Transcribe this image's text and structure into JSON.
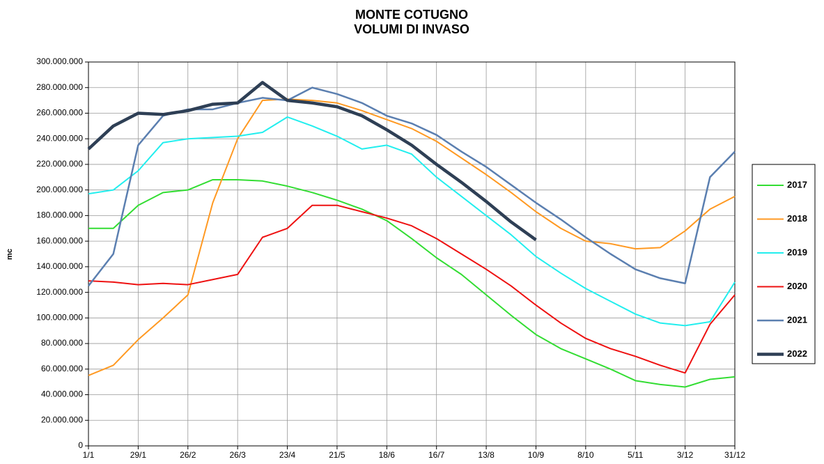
{
  "chart_data": {
    "type": "line",
    "title": "MONTE COTUGNO",
    "subtitle": "VOLUMI DI INVASO",
    "y_label": "mc",
    "x": [
      0,
      14,
      28,
      42,
      56,
      70,
      84,
      98,
      112,
      126,
      140,
      154,
      168,
      182,
      196,
      210,
      224,
      238,
      252,
      266,
      280,
      294,
      308,
      322,
      336,
      350,
      364
    ],
    "xlim": [
      0,
      364
    ],
    "xticks": [
      {
        "value": 0,
        "label": "1/1"
      },
      {
        "value": 28,
        "label": "29/1"
      },
      {
        "value": 56,
        "label": "26/2"
      },
      {
        "value": 84,
        "label": "26/3"
      },
      {
        "value": 112,
        "label": "23/4"
      },
      {
        "value": 140,
        "label": "21/5"
      },
      {
        "value": 168,
        "label": "18/6"
      },
      {
        "value": 196,
        "label": "16/7"
      },
      {
        "value": 224,
        "label": "13/8"
      },
      {
        "value": 252,
        "label": "10/9"
      },
      {
        "value": 280,
        "label": "8/10"
      },
      {
        "value": 308,
        "label": "5/11"
      },
      {
        "value": 336,
        "label": "3/12"
      },
      {
        "value": 364,
        "label": "31/12"
      }
    ],
    "ylim": [
      0,
      300000000
    ],
    "yticks": [
      0,
      {
        "value": 20000000,
        "label": "20.000.000"
      },
      {
        "value": 40000000,
        "label": "40.000.000"
      },
      {
        "value": 60000000,
        "label": "60.000.000"
      },
      {
        "value": 80000000,
        "label": "80.000.000"
      },
      {
        "value": 100000000,
        "label": "100.000.000"
      },
      {
        "value": 120000000,
        "label": "120.000.000"
      },
      {
        "value": 140000000,
        "label": "140.000.000"
      },
      {
        "value": 160000000,
        "label": "160.000.000"
      },
      {
        "value": 180000000,
        "label": "180.000.000"
      },
      {
        "value": 200000000,
        "label": "200.000.000"
      },
      {
        "value": 220000000,
        "label": "220.000.000"
      },
      {
        "value": 240000000,
        "label": "240.000.000"
      },
      {
        "value": 260000000,
        "label": "260.000.000"
      },
      {
        "value": 280000000,
        "label": "280.000.000"
      },
      {
        "value": 300000000,
        "label": "300.000.000"
      }
    ],
    "grid": true,
    "legend": "right",
    "series": [
      {
        "name": "2017",
        "color": "#33dd33",
        "line_width": 2,
        "values": [
          170000000,
          170000000,
          188000000,
          198000000,
          200000000,
          208000000,
          208000000,
          207000000,
          203000000,
          198000000,
          192000000,
          185000000,
          176000000,
          162000000,
          147000000,
          134000000,
          118000000,
          102000000,
          87000000,
          76000000,
          68000000,
          60000000,
          51000000,
          48000000,
          46000000,
          52000000,
          54000000
        ]
      },
      {
        "name": "2018",
        "color": "#ff9922",
        "line_width": 2,
        "values": [
          55000000,
          63000000,
          83000000,
          100000000,
          118000000,
          190000000,
          240000000,
          270000000,
          271000000,
          270000000,
          268000000,
          262000000,
          255000000,
          248000000,
          238000000,
          225000000,
          212000000,
          198000000,
          183000000,
          170000000,
          160000000,
          158000000,
          154000000,
          155000000,
          168000000,
          185000000,
          195000000
        ]
      },
      {
        "name": "2019",
        "color": "#22eeee",
        "line_width": 2,
        "values": [
          197000000,
          200000000,
          215000000,
          237000000,
          240000000,
          241000000,
          242000000,
          245000000,
          257000000,
          250000000,
          242000000,
          232000000,
          235000000,
          228000000,
          210000000,
          195000000,
          180000000,
          165000000,
          148000000,
          135000000,
          123000000,
          113000000,
          103000000,
          96000000,
          94000000,
          97000000,
          128000000
        ]
      },
      {
        "name": "2020",
        "color": "#ee1111",
        "line_width": 2,
        "values": [
          129000000,
          128000000,
          126000000,
          127000000,
          126000000,
          130000000,
          134000000,
          163000000,
          170000000,
          188000000,
          188000000,
          183000000,
          178000000,
          172000000,
          162000000,
          150000000,
          138000000,
          125000000,
          110000000,
          96000000,
          84000000,
          76000000,
          70000000,
          63000000,
          57000000,
          95000000,
          118000000
        ]
      },
      {
        "name": "2021",
        "color": "#5b7fb0",
        "line_width": 2.5,
        "values": [
          125000000,
          150000000,
          235000000,
          258000000,
          263000000,
          263000000,
          268000000,
          272000000,
          270000000,
          280000000,
          275000000,
          268000000,
          258000000,
          252000000,
          243000000,
          230000000,
          218000000,
          204000000,
          190000000,
          177000000,
          163000000,
          150000000,
          138000000,
          131000000,
          127000000,
          210000000,
          230000000
        ]
      },
      {
        "name": "2022",
        "color": "#2e3f55",
        "line_width": 4.5,
        "values": [
          232000000,
          250000000,
          260000000,
          259000000,
          262000000,
          267000000,
          268000000,
          284000000,
          270000000,
          268000000,
          265000000,
          258000000,
          247000000,
          235000000,
          220000000,
          206000000,
          191000000,
          175000000,
          161000000,
          null,
          null,
          null,
          null,
          null,
          null,
          null,
          null
        ]
      }
    ]
  }
}
